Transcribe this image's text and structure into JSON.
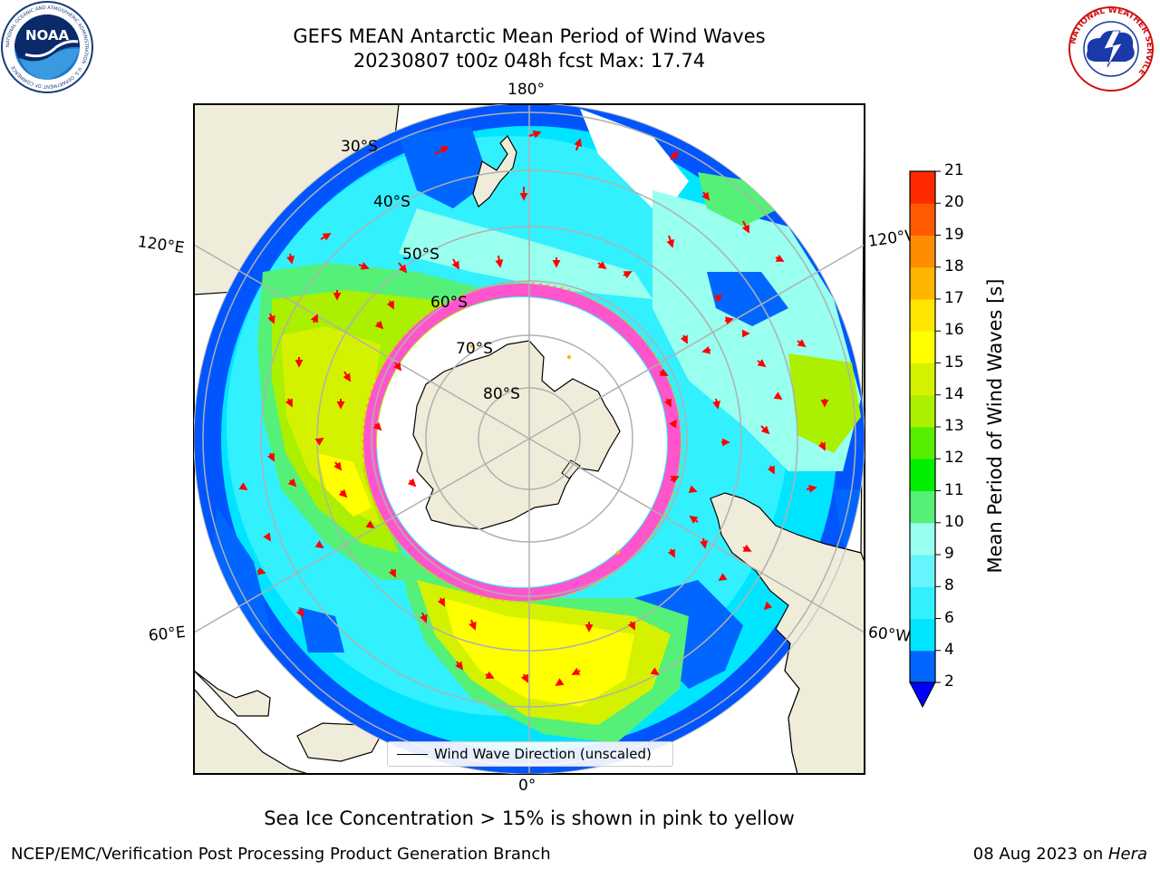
{
  "header": {
    "title_line1": "GEFS MEAN Antarctic Mean Period of Wind Waves",
    "title_line2": "20230807 t00z 048h fcst   Max: 17.74"
  },
  "logos": {
    "noaa_text": "NOAA",
    "noaa_ring_text": "NATIONAL OCEANIC AND ATMOSPHERIC ADMINISTRATION · U.S. DEPARTMENT OF COMMERCE",
    "nws_ring_text": "NATIONAL WEATHER SERVICE"
  },
  "map": {
    "projection": "south-polar-stereographic",
    "lon_labels": {
      "top": "180°",
      "bottom": "0°",
      "upper_left": "120°E",
      "upper_right": "120°W",
      "lower_left": "60°E",
      "lower_right": "60°W"
    },
    "lat_labels": [
      "30°S",
      "40°S",
      "50°S",
      "60°S",
      "70°S",
      "80°S"
    ],
    "legend_label": "Wind Wave Direction (unscaled)",
    "colors": {
      "land": "#efedda",
      "ocean_nodata": "#ffffff",
      "arrow": "#ff0000",
      "grid": "#b0b0b0",
      "ice_pink": "#ff55cc"
    }
  },
  "colorbar": {
    "title": "Mean Period of Wind Waves [s]",
    "ticks": [
      "2",
      "4",
      "6",
      "8",
      "9",
      "10",
      "11",
      "12",
      "13",
      "14",
      "15",
      "16",
      "17",
      "18",
      "19",
      "20",
      "21"
    ],
    "colors": [
      "#0066ff",
      "#00e5ff",
      "#33f0ff",
      "#66f5ff",
      "#99ffee",
      "#55f077",
      "#00ee00",
      "#55ee00",
      "#aaf000",
      "#d4f200",
      "#ffff00",
      "#ffe600",
      "#ffb400",
      "#ff8c00",
      "#ff5a00",
      "#ff2a00"
    ],
    "extend_color": "#0000ff"
  },
  "note": "Sea Ice Concentration > 15% is shown in pink to yellow",
  "footer": {
    "left": "NCEP/EMC/Verification Post Processing Product Generation Branch",
    "right_date": "08 Aug 2023 on ",
    "right_host": "Hera"
  }
}
